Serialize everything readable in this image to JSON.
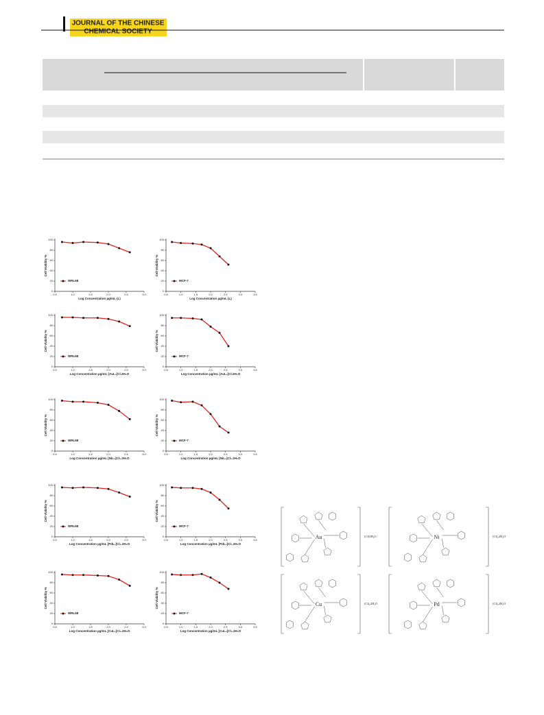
{
  "header": {
    "journal_line1": "JOURNAL OF THE CHINESE",
    "journal_line2": "CHEMICAL SOCIETY"
  },
  "chart_data": [
    {
      "type": "line",
      "ylabel": "Cell Viability %",
      "xlabel": "Log Concentration µg/mL (L)",
      "x": [
        0.7,
        1.0,
        1.3,
        1.7,
        2.0,
        2.3,
        2.6
      ],
      "series": [
        {
          "name": "WRL68",
          "color": "#e3201b",
          "values": [
            96,
            94,
            96,
            95,
            92,
            84,
            76
          ]
        }
      ],
      "xlim": [
        0.5,
        3
      ],
      "ylim": [
        0,
        100
      ],
      "xticks": [
        0.5,
        {
          "value": 1,
          "label": "1.0"
        },
        1.5,
        {
          "value": 2,
          "label": "2.0"
        },
        2.5,
        {
          "value": 3,
          "label": "3.0"
        }
      ],
      "yticks": [
        0,
        20,
        40,
        60,
        80,
        100
      ]
    },
    {
      "type": "line",
      "ylabel": "Cell Viability %",
      "xlabel": "Log Concentration µg/mL (L)",
      "x": [
        0.7,
        1.0,
        1.4,
        1.7,
        2.0,
        2.3,
        2.6
      ],
      "series": [
        {
          "name": "MCF-7",
          "color": "#e3201b",
          "values": [
            96,
            94,
            93,
            91,
            84,
            68,
            52
          ]
        }
      ],
      "xlim": [
        0.5,
        3.5
      ],
      "ylim": [
        0,
        100
      ],
      "xticks": [
        0.5,
        {
          "value": 1,
          "label": "1.0"
        },
        1.5,
        {
          "value": 2,
          "label": "2.0"
        },
        2.5,
        {
          "value": 3,
          "label": "3.0"
        },
        3.5
      ],
      "yticks": [
        0,
        20,
        40,
        60,
        80,
        100
      ]
    },
    {
      "type": "line",
      "ylabel": "Cell Viability %",
      "xlabel": "Log Concentration µg/mL [AuL₂]Cl.2H₂O",
      "x": [
        0.7,
        1.0,
        1.3,
        1.7,
        2.0,
        2.3,
        2.6
      ],
      "series": [
        {
          "name": "WRL68",
          "color": "#e3201b",
          "values": [
            96,
            96,
            95,
            95,
            93,
            88,
            79
          ]
        }
      ],
      "xlim": [
        0.5,
        3
      ],
      "ylim": [
        0,
        100
      ],
      "xticks": [
        0.5,
        {
          "value": 1,
          "label": "1.0"
        },
        1.5,
        {
          "value": 2,
          "label": "2.0"
        },
        2.5,
        {
          "value": 3,
          "label": "3.0"
        }
      ],
      "yticks": [
        0,
        20,
        40,
        60,
        80,
        100
      ]
    },
    {
      "type": "line",
      "ylabel": "Cell Viability %",
      "xlabel": "Log Concentration µg/mL [AuL₂]Cl.2H₂O",
      "x": [
        0.7,
        1.0,
        1.4,
        1.7,
        2.0,
        2.3,
        2.6
      ],
      "series": [
        {
          "name": "MCF-7",
          "color": "#e3201b",
          "values": [
            95,
            95,
            94,
            92,
            78,
            66,
            40
          ]
        }
      ],
      "xlim": [
        0.5,
        3.5
      ],
      "ylim": [
        0,
        100
      ],
      "xticks": [
        0.5,
        {
          "value": 1,
          "label": "1.0"
        },
        1.5,
        {
          "value": 2,
          "label": "2.0"
        },
        2.5,
        {
          "value": 3,
          "label": "3.0"
        },
        3.5
      ],
      "yticks": [
        0,
        20,
        40,
        60,
        80,
        100
      ]
    },
    {
      "type": "line",
      "ylabel": "Cell Viability %",
      "xlabel": "Log Concentration µg/mL [NiL₂]Cl₂.2H₂O",
      "x": [
        0.7,
        1.0,
        1.3,
        1.7,
        2.0,
        2.3,
        2.6
      ],
      "series": [
        {
          "name": "WRL68",
          "color": "#e3201b",
          "values": [
            98,
            96,
            96,
            94,
            90,
            78,
            62
          ]
        }
      ],
      "xlim": [
        0.5,
        3
      ],
      "ylim": [
        0,
        100
      ],
      "xticks": [
        0.5,
        {
          "value": 1,
          "label": "1.0"
        },
        1.5,
        {
          "value": 2,
          "label": "2.0"
        },
        2.5,
        {
          "value": 3,
          "label": "3.0"
        }
      ],
      "yticks": [
        0,
        20,
        40,
        60,
        80,
        100
      ]
    },
    {
      "type": "line",
      "ylabel": "Cell Viability %",
      "xlabel": "Log Concentration µg/mL [NiL₂]Cl₂.2H₂O",
      "x": [
        0.7,
        1.0,
        1.4,
        1.7,
        2.0,
        2.3,
        2.6
      ],
      "series": [
        {
          "name": "MCF-7",
          "color": "#e3201b",
          "values": [
            98,
            95,
            96,
            89,
            72,
            48,
            36
          ]
        }
      ],
      "xlim": [
        0.5,
        3.5
      ],
      "ylim": [
        0,
        100
      ],
      "xticks": [
        0.5,
        {
          "value": 1,
          "label": "1.0"
        },
        1.5,
        {
          "value": 2,
          "label": "2.0"
        },
        2.5,
        {
          "value": 3,
          "label": "3.0"
        },
        3.5
      ],
      "yticks": [
        0,
        20,
        40,
        60,
        80,
        100
      ]
    },
    {
      "type": "line",
      "ylabel": "Cell Viability %",
      "xlabel": "Log Concentration µg/mL [PdL₂]Cl₂.2H₂O",
      "x": [
        0.7,
        1.0,
        1.3,
        1.7,
        2.0,
        2.3,
        2.6
      ],
      "series": [
        {
          "name": "WRL68",
          "color": "#e3201b",
          "values": [
            96,
            95,
            96,
            95,
            93,
            86,
            78
          ]
        }
      ],
      "xlim": [
        0.5,
        3
      ],
      "ylim": [
        0,
        100
      ],
      "xticks": [
        0.5,
        {
          "value": 1,
          "label": "1.0"
        },
        1.5,
        {
          "value": 2,
          "label": "2.0"
        },
        2.5,
        {
          "value": 3,
          "label": "3.0"
        }
      ],
      "yticks": [
        0,
        20,
        40,
        60,
        80,
        100
      ]
    },
    {
      "type": "line",
      "ylabel": "Cell Viability %",
      "xlabel": "Log Concentration µg/mL [PdL₂]Cl₂.2H₂O",
      "x": [
        0.7,
        1.0,
        1.4,
        1.7,
        2.0,
        2.3,
        2.6
      ],
      "series": [
        {
          "name": "MCF-7",
          "color": "#e3201b",
          "values": [
            96,
            95,
            95,
            93,
            86,
            72,
            55
          ]
        }
      ],
      "xlim": [
        0.5,
        3.5
      ],
      "ylim": [
        0,
        100
      ],
      "xticks": [
        0.5,
        {
          "value": 1,
          "label": "1.0"
        },
        1.5,
        {
          "value": 2,
          "label": "2.0"
        },
        2.5,
        {
          "value": 3,
          "label": "3.0"
        },
        3.5
      ],
      "yticks": [
        0,
        20,
        40,
        60,
        80,
        100
      ]
    },
    {
      "type": "line",
      "ylabel": "Cell Viability %",
      "xlabel": "Log Concentration µg/mL [CuL₂]Cl₂.2H₂O",
      "x": [
        0.7,
        1.0,
        1.3,
        1.7,
        2.0,
        2.3,
        2.6
      ],
      "series": [
        {
          "name": "WRL68",
          "color": "#e3201b",
          "values": [
            96,
            95,
            95,
            94,
            93,
            86,
            74
          ]
        }
      ],
      "xlim": [
        0.5,
        3
      ],
      "ylim": [
        0,
        100
      ],
      "xticks": [
        0.5,
        {
          "value": 1,
          "label": "1.0"
        },
        1.5,
        {
          "value": 2,
          "label": "2.0"
        },
        2.5,
        {
          "value": 3,
          "label": "3.0"
        }
      ],
      "yticks": [
        0,
        20,
        40,
        60,
        80,
        100
      ]
    },
    {
      "type": "line",
      "ylabel": "Cell Viability %",
      "xlabel": "Log Concentration µg/mL [CuL₂]Cl₂.2H₂O",
      "x": [
        0.7,
        1.0,
        1.4,
        1.7,
        2.0,
        2.3,
        2.6
      ],
      "series": [
        {
          "name": "MCF-7",
          "color": "#e3201b",
          "values": [
            96,
            95,
            95,
            97,
            90,
            80,
            68
          ]
        }
      ],
      "xlim": [
        0.5,
        3.5
      ],
      "ylim": [
        0,
        100
      ],
      "xticks": [
        0.5,
        {
          "value": 1,
          "label": "1.0"
        },
        1.5,
        {
          "value": 2,
          "label": "2.0"
        },
        2.5,
        {
          "value": 3,
          "label": "3.0"
        },
        3.5
      ],
      "yticks": [
        0,
        20,
        40,
        60,
        80,
        100
      ]
    }
  ],
  "structures": [
    {
      "metal": "Au",
      "counter": "(Cl)2H₂O"
    },
    {
      "metal": "Ni",
      "counter": "(Cl)₂2H₂O"
    },
    {
      "metal": "Cu",
      "counter": "(Cl)₂2H₂O"
    },
    {
      "metal": "Pd",
      "counter": "(Cl)₂2H₂O"
    }
  ]
}
